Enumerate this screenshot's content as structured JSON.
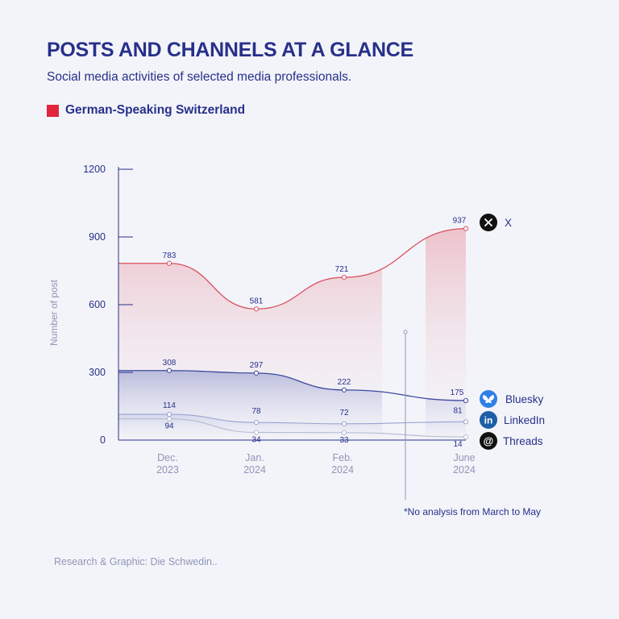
{
  "header": {
    "title": "POSTS AND CHANNELS AT A GLANCE",
    "subtitle": "Social media activities of selected media professionals.",
    "region": "German-Speaking Switzerland",
    "region_color": "#e0253c"
  },
  "footer": {
    "credit": "Research & Graphic: Die Schwedin.."
  },
  "chart_data": {
    "type": "area",
    "ylabel": "Number of post",
    "ylim": [
      0,
      1200
    ],
    "yticks": [
      0,
      300,
      600,
      900,
      1200
    ],
    "categories": [
      {
        "month": "Dec.",
        "year": "2023"
      },
      {
        "month": "Jan.",
        "year": "2024"
      },
      {
        "month": "Feb.",
        "year": "2024"
      },
      {
        "month": "June",
        "year": "2024"
      }
    ],
    "series": [
      {
        "name": "X",
        "icon": "x-logo-icon",
        "color": "#d9505e",
        "values": [
          783,
          581,
          721,
          937
        ]
      },
      {
        "name": "Bluesky",
        "icon": "bluesky-butterfly-icon",
        "color": "#3d4a9c",
        "values": [
          308,
          297,
          222,
          175
        ]
      },
      {
        "name": "LinkedIn",
        "icon": "linkedin-logo-icon",
        "color": "#9aa3cf",
        "values": [
          114,
          78,
          72,
          81
        ]
      },
      {
        "name": "Threads",
        "icon": "threads-logo-icon",
        "color": "#b4b9d3",
        "values": [
          94,
          34,
          33,
          14
        ]
      }
    ],
    "annotation": "*No analysis from March to May",
    "legend_placement": "right"
  }
}
